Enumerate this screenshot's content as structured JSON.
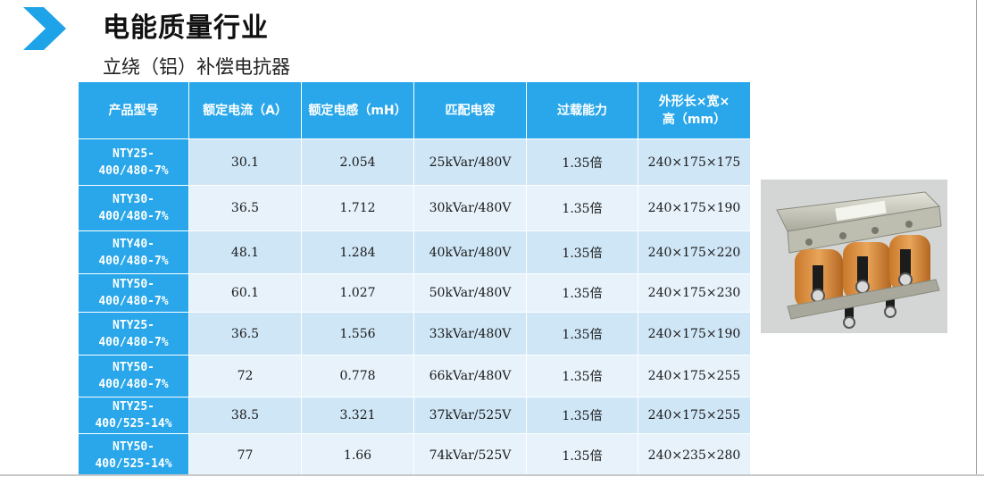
{
  "header": {
    "title": "电能质量行业",
    "subtitle": "立绕（铝）补偿电抗器",
    "accent_color": "#1fa3e8",
    "icon": "chevron-right-icon"
  },
  "table": {
    "header_color": "#29a7ea",
    "columns": [
      "产品型号",
      "额定电流（A）",
      "额定电感（mH）",
      "匹配电容",
      "过载能力",
      "外形长×宽×高（mm）"
    ],
    "rows": [
      {
        "model_line1": "NTY25-",
        "model_line2": "400/480-7%",
        "current": "30.1",
        "inductance": "2.054",
        "capacitor": "25kVar/480V",
        "overload": "1.35倍",
        "size": "240×175×175"
      },
      {
        "model_line1": "NTY30-",
        "model_line2": "400/480-7%",
        "current": "36.5",
        "inductance": "1.712",
        "capacitor": "30kVar/480V",
        "overload": "1.35倍",
        "size": "240×175×190"
      },
      {
        "model_line1": "NTY40-",
        "model_line2": "400/480-7%",
        "current": "48.1",
        "inductance": "1.284",
        "capacitor": "40kVar/480V",
        "overload": "1.35倍",
        "size": "240×175×220"
      },
      {
        "model_line1": "NTY50-",
        "model_line2": "400/480-7%",
        "current": "60.1",
        "inductance": "1.027",
        "capacitor": "50kVar/480V",
        "overload": "1.35倍",
        "size": "240×175×230"
      },
      {
        "model_line1": "NTY25-",
        "model_line2": "400/480-7%",
        "current": "36.5",
        "inductance": "1.556",
        "capacitor": "33kVar/480V",
        "overload": "1.35倍",
        "size": "240×175×190"
      },
      {
        "model_line1": "NTY50-",
        "model_line2": "400/480-7%",
        "current": "72",
        "inductance": "0.778",
        "capacitor": "66kVar/480V",
        "overload": "1.35倍",
        "size": "240×175×255"
      },
      {
        "model_line1": "NTY25-",
        "model_line2": "400/525-14%",
        "current": "38.5",
        "inductance": "3.321",
        "capacitor": "37kVar/525V",
        "overload": "1.35倍",
        "size": "240×175×255"
      },
      {
        "model_line1": "NTY50-",
        "model_line2": "400/525-14%",
        "current": "77",
        "inductance": "1.66",
        "capacitor": "74kVar/525V",
        "overload": "1.35倍",
        "size": "240×235×280"
      }
    ]
  },
  "photo": {
    "subject": "three-phase-reactor-photo"
  }
}
